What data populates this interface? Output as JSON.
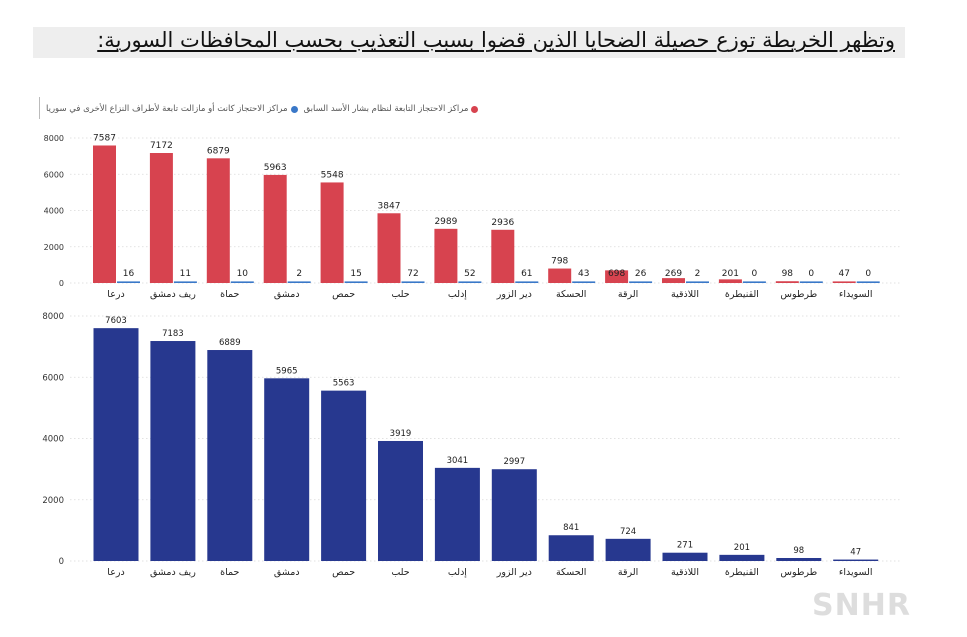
{
  "title": "وتظهر الخريطة توزع حصيلة الضحايا الذين قضوا بسبب التعذيب بحسب المحافظات السورية:",
  "watermark": "SNHR",
  "colors": {
    "regime": "#d7434f",
    "other": "#3a78c8",
    "total": "#27388f",
    "grid": "#dddddd"
  },
  "chart_data": [
    {
      "type": "bar",
      "categories": [
        "درعا",
        "ريف دمشق",
        "حماة",
        "دمشق",
        "حمص",
        "حلب",
        "إدلب",
        "دير الزور",
        "الحسكة",
        "الرقة",
        "اللاذقية",
        "القنيطرة",
        "طرطوس",
        "السويداء"
      ],
      "series": [
        {
          "name": "مراكز الاحتجاز التابعة لنظام بشار الأسد السابق",
          "color": "#d7434f",
          "values": [
            7587,
            7172,
            6879,
            5963,
            5548,
            3847,
            2989,
            2936,
            798,
            698,
            269,
            201,
            98,
            47
          ]
        },
        {
          "name": "مراكز الاحتجاز كانت أو مازالت تابعة لأطراف النزاع الأخرى في سوريا",
          "color": "#3a78c8",
          "values": [
            16,
            11,
            10,
            2,
            15,
            72,
            52,
            61,
            43,
            26,
            2,
            0,
            0,
            0
          ]
        }
      ],
      "ylim": [
        0,
        8000
      ],
      "yticks": [
        0,
        2000,
        4000,
        6000,
        8000
      ],
      "grid": true,
      "legend": "top-left"
    },
    {
      "type": "bar",
      "categories": [
        "درعا",
        "ريف دمشق",
        "حماة",
        "دمشق",
        "حمص",
        "حلب",
        "إدلب",
        "دير الزور",
        "الحسكة",
        "الرقة",
        "اللاذقية",
        "القنيطرة",
        "طرطوس",
        "السويداء"
      ],
      "series": [
        {
          "color": "#27388f",
          "values": [
            7603,
            7183,
            6889,
            5965,
            5563,
            3919,
            3041,
            2997,
            841,
            724,
            271,
            201,
            98,
            47
          ]
        }
      ],
      "ylim": [
        0,
        8000
      ],
      "yticks": [
        0,
        2000,
        4000,
        6000,
        8000
      ],
      "grid": true
    }
  ]
}
